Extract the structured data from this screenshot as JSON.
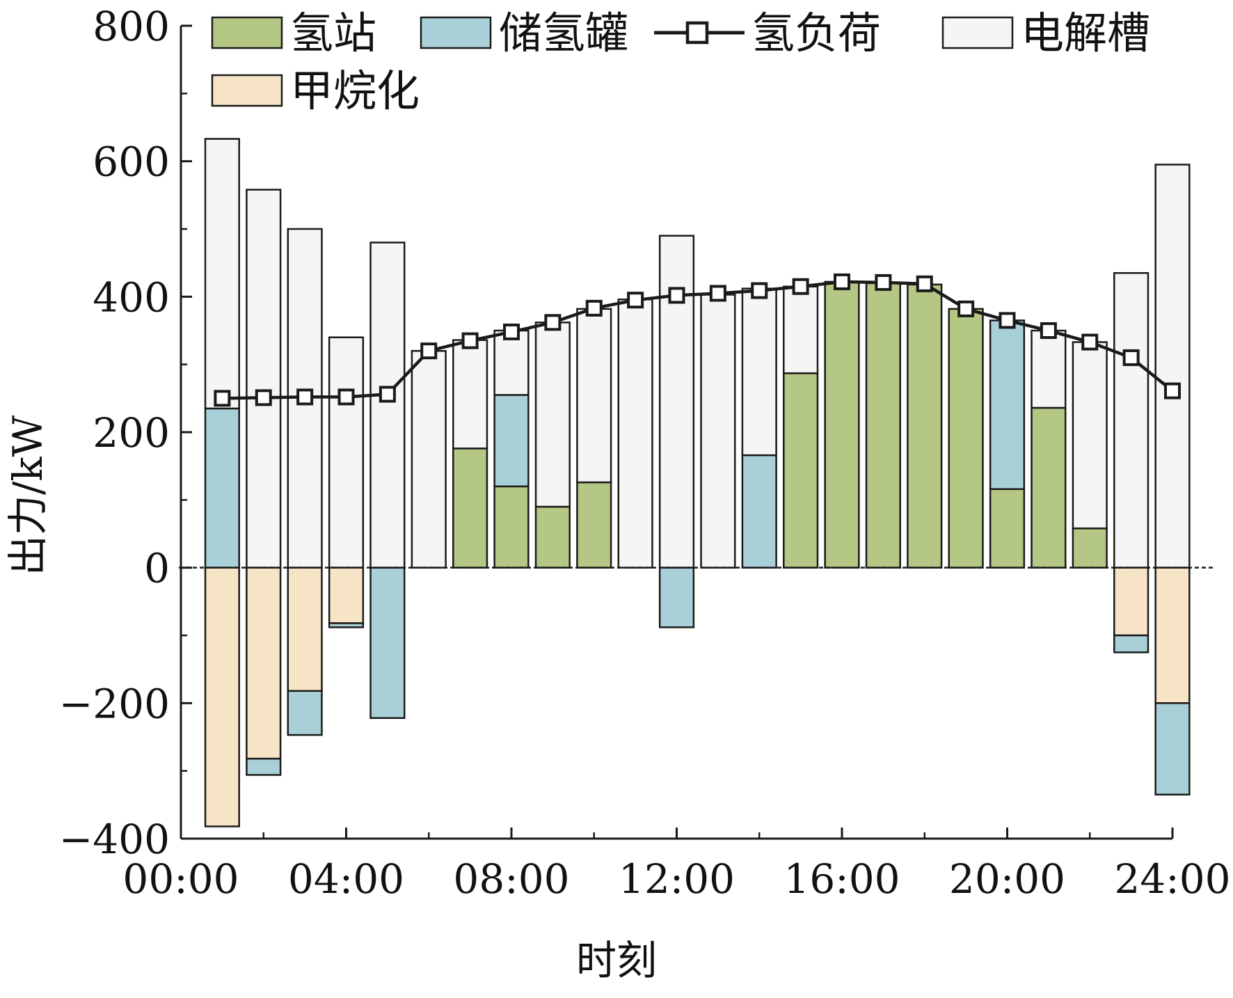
{
  "chart_data": {
    "type": "bar",
    "stacked": true,
    "xlabel": "时刻",
    "ylabel": "出力/kW",
    "ylim": [
      -400,
      800
    ],
    "yticks": [
      -400,
      -200,
      0,
      200,
      400,
      600,
      800
    ],
    "ytick_labels": [
      "−400",
      "−200",
      "0",
      "200",
      "400",
      "600",
      "800"
    ],
    "xlim": [
      0,
      24
    ],
    "xticks": [
      0,
      4,
      8,
      12,
      16,
      20,
      24
    ],
    "xtick_labels": [
      "00:00",
      "04:00",
      "08:00",
      "12:00",
      "16:00",
      "20:00",
      "24:00"
    ],
    "grid": false,
    "legend_position": "top",
    "x": [
      1,
      2,
      3,
      4,
      5,
      6,
      7,
      8,
      9,
      10,
      11,
      12,
      13,
      14,
      15,
      16,
      17,
      18,
      19,
      20,
      21,
      22,
      23,
      24
    ],
    "positive_series": [
      {
        "name": "氢站",
        "color": "#b5c784",
        "values": [
          0,
          0,
          0,
          0,
          0,
          0,
          176,
          120,
          90,
          126,
          0,
          0,
          0,
          0,
          287,
          422,
          420,
          418,
          382,
          116,
          236,
          58,
          0,
          0
        ]
      },
      {
        "name": "储氢罐",
        "color": "#a9d0d8",
        "values": [
          235,
          0,
          0,
          0,
          0,
          0,
          0,
          135,
          0,
          0,
          0,
          0,
          0,
          166,
          0,
          0,
          0,
          0,
          0,
          249,
          0,
          0,
          0,
          0
        ]
      },
      {
        "name": "电解槽",
        "color": "#f5f5f5",
        "values": [
          398,
          558,
          500,
          340,
          480,
          320,
          160,
          95,
          272,
          256,
          396,
          490,
          403,
          246,
          128,
          0,
          0,
          0,
          0,
          0,
          114,
          275,
          435,
          595
        ]
      }
    ],
    "negative_series": [
      {
        "name": "甲烷化",
        "color": "#f7e4c6",
        "values": [
          -382,
          -282,
          -182,
          -82,
          0,
          0,
          0,
          0,
          0,
          0,
          0,
          0,
          0,
          0,
          0,
          0,
          0,
          0,
          0,
          0,
          0,
          0,
          -100,
          -200
        ]
      },
      {
        "name": "储氢罐",
        "color": "#a9d0d8",
        "values": [
          0,
          -24,
          -65,
          -6,
          -222,
          0,
          0,
          0,
          0,
          0,
          0,
          -88,
          0,
          0,
          0,
          0,
          0,
          0,
          0,
          0,
          0,
          0,
          -25,
          -135
        ]
      }
    ],
    "line_series": {
      "name": "氢负荷",
      "color": "#1a1a1a",
      "values": [
        250,
        251,
        252,
        252,
        256,
        320,
        335,
        348,
        362,
        383,
        395,
        402,
        405,
        409,
        415,
        422,
        421,
        419,
        382,
        365,
        350,
        333,
        310,
        261
      ]
    },
    "legend": [
      {
        "label": "氢站",
        "kind": "box",
        "color": "#b5c784"
      },
      {
        "label": "储氢罐",
        "kind": "box",
        "color": "#a9d0d8"
      },
      {
        "label": "氢负荷",
        "kind": "line",
        "color": "#1a1a1a"
      },
      {
        "label": "电解槽",
        "kind": "box",
        "color": "#f5f5f5"
      },
      {
        "label": "甲烷化",
        "kind": "box",
        "color": "#f7e4c6"
      }
    ]
  }
}
